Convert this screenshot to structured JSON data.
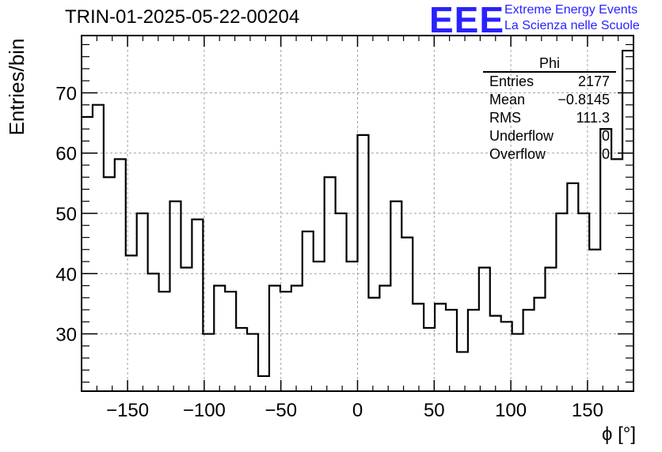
{
  "header": {
    "title": "TRIN-01-2025-05-22-00204",
    "logo_mark": "EEE",
    "logo_line1": "Extreme Energy Events",
    "logo_line2": "La Scienza nelle Scuole"
  },
  "stats": {
    "name": "Phi",
    "rows": [
      {
        "label": "Entries",
        "value": "2177"
      },
      {
        "label": "Mean",
        "value": "−0.8145"
      },
      {
        "label": "RMS",
        "value": "111.3"
      },
      {
        "label": "Underflow",
        "value": "0"
      },
      {
        "label": "Overflow",
        "value": "0"
      }
    ]
  },
  "chart_data": {
    "type": "histogram",
    "title": "TRIN-01-2025-05-22-00204",
    "xlabel": "ϕ [°]",
    "ylabel": "Entries/bin",
    "xlim": [
      -180,
      180
    ],
    "ylim": [
      20.5,
      79.5
    ],
    "bin_width": 7.2,
    "x_ticks": [
      -150,
      -100,
      -50,
      0,
      50,
      100,
      150
    ],
    "x_tick_labels": [
      "−150",
      "−100",
      "−50",
      "0",
      "50",
      "100",
      "150"
    ],
    "y_ticks": [
      30,
      40,
      50,
      60,
      70
    ],
    "y_tick_labels": [
      "30",
      "40",
      "50",
      "60",
      "70"
    ],
    "grid": true,
    "line_color": "#000000",
    "grid_color": "#a0a0a0",
    "series": [
      {
        "name": "Phi",
        "values": [
          66,
          68,
          56,
          59,
          43,
          50,
          40,
          37,
          52,
          41,
          49,
          30,
          38,
          37,
          31,
          30,
          23,
          38,
          37,
          38,
          47,
          42,
          56,
          50,
          42,
          63,
          36,
          38,
          52,
          46,
          35,
          31,
          35,
          34,
          27,
          34,
          41,
          33,
          32,
          30,
          34,
          36,
          41,
          50,
          55,
          50,
          44,
          64,
          59,
          77
        ]
      }
    ]
  }
}
